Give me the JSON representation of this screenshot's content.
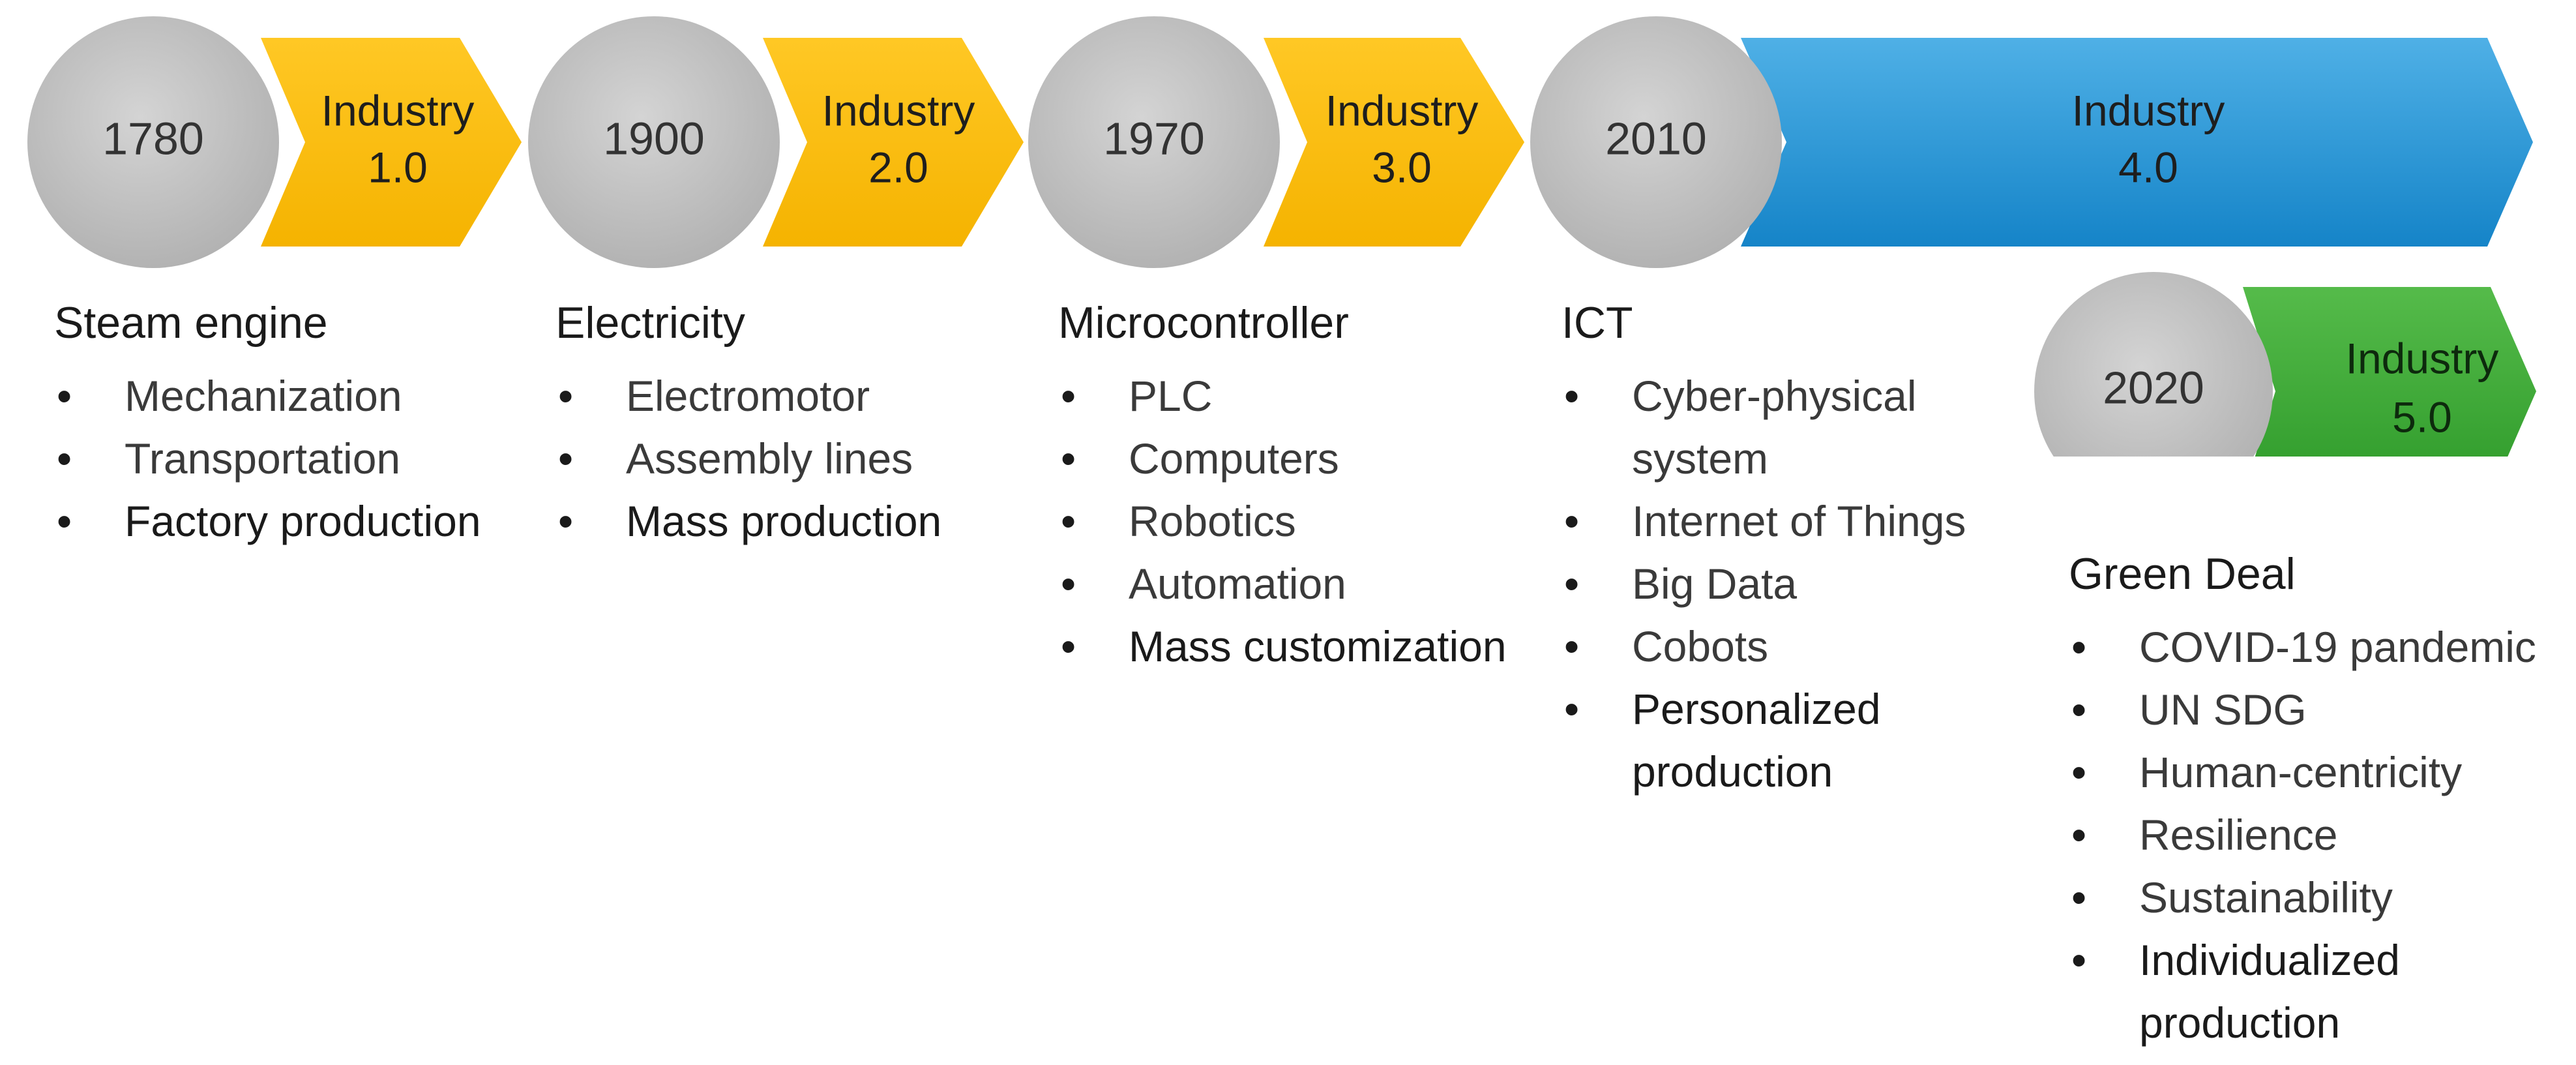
{
  "stages": [
    {
      "year": "1780",
      "industry_line1": "Industry",
      "industry_line2": "1.0",
      "arrow_color": "#FFC000"
    },
    {
      "year": "1900",
      "industry_line1": "Industry",
      "industry_line2": "2.0",
      "arrow_color": "#FFC000"
    },
    {
      "year": "1970",
      "industry_line1": "Industry",
      "industry_line2": "3.0",
      "arrow_color": "#FFC000"
    },
    {
      "year": "2010",
      "industry_line1": "Industry",
      "industry_line2": "4.0",
      "arrow_color": "#1E96DC"
    },
    {
      "year": "2020",
      "industry_line1": "Industry",
      "industry_line2": "5.0",
      "arrow_color": "#3AA935"
    }
  ],
  "colors": {
    "circle": "#BFBFBF",
    "yellow": "#FFC000",
    "blue": "#1E96DC",
    "green": "#3AA935"
  },
  "columns": [
    {
      "heading": "Steam engine",
      "items": [
        "Mechanization",
        "Transportation",
        "Factory production"
      ]
    },
    {
      "heading": "Electricity",
      "items": [
        "Electromotor",
        "Assembly lines",
        "Mass production"
      ]
    },
    {
      "heading": "Microcontroller",
      "items": [
        "PLC",
        "Computers",
        "Robotics",
        "Automation",
        "Mass customization"
      ]
    },
    {
      "heading": "ICT",
      "items": [
        "Cyber-physical system",
        "Internet of Things",
        "Big Data",
        "Cobots",
        "Personalized production"
      ]
    },
    {
      "heading": "Green Deal",
      "items": [
        "COVID-19 pandemic",
        "UN SDG",
        "Human-centricity",
        "Resilience",
        "Sustainability",
        "Individualized production"
      ]
    }
  ]
}
